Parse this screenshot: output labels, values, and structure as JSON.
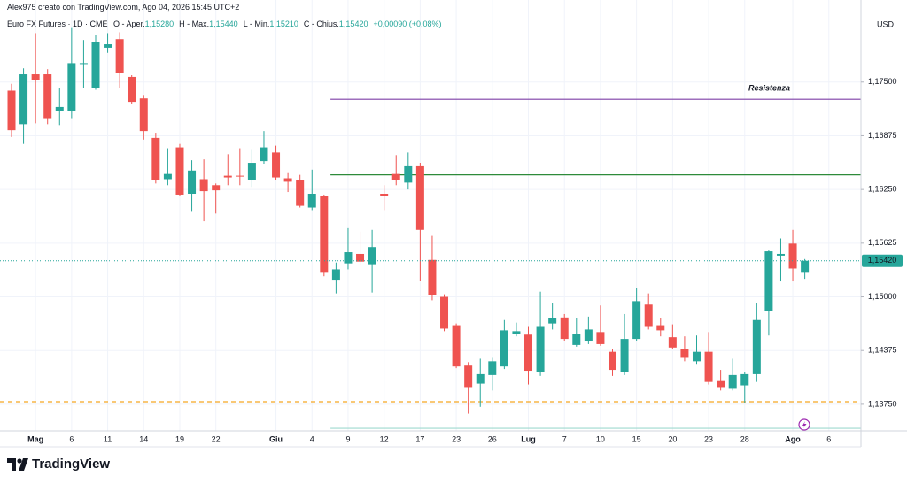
{
  "chart_data": {
    "type": "candlestick",
    "header": "Alex975 creato con TradingView.com, Ago 04, 2026 15:45 UTC+2",
    "title": "Euro FX Futures · 1D · CME",
    "legend": [
      {
        "key": "O - Aper.",
        "value": "1,15280"
      },
      {
        "key": "H - Max.",
        "value": "1,15440"
      },
      {
        "key": "L - Min.",
        "value": "1,15210"
      },
      {
        "key": "C - Chius.",
        "value": "1,15420"
      }
    ],
    "change": "+0,00090 (+0,08%)",
    "currency": "USD",
    "categories": [
      null,
      null,
      "Mag",
      null,
      null,
      "6",
      null,
      null,
      "11",
      null,
      null,
      "14",
      null,
      null,
      "19",
      null,
      null,
      "22",
      null,
      null,
      null,
      null,
      "Giu",
      null,
      null,
      "4",
      null,
      null,
      "9",
      null,
      null,
      "12",
      null,
      null,
      "17",
      null,
      null,
      "23",
      null,
      null,
      "26",
      null,
      null,
      "Lug",
      null,
      null,
      "7",
      null,
      null,
      "10",
      null,
      null,
      "15",
      null,
      null,
      "20",
      null,
      null,
      "23",
      null,
      null,
      "28",
      null,
      null,
      null,
      "Ago",
      null,
      null,
      "6"
    ],
    "open": [
      1.174,
      1.1701,
      1.1759,
      1.1759,
      1.1716,
      1.1716,
      1.1771,
      1.1743,
      1.179,
      1.18,
      1.1756,
      1.1731,
      1.1685,
      1.1637,
      1.1674,
      1.162,
      1.1637,
      1.163,
      1.1641,
      1.1641,
      1.1636,
      1.1658,
      1.1668,
      1.1638,
      1.1636,
      1.1604,
      1.1617,
      1.1519,
      1.1539,
      1.155,
      1.1538,
      1.162,
      1.1643,
      1.1633,
      1.1652,
      1.1543,
      1.15,
      1.1467,
      1.142,
      1.1399,
      1.1409,
      1.1419,
      1.1457,
      1.1456,
      1.1412,
      1.1469,
      1.1476,
      1.1444,
      1.1448,
      1.1459,
      1.1436,
      1.1412,
      1.1451,
      1.1491,
      1.1467,
      1.1453,
      1.1439,
      1.1425,
      1.1436,
      1.1402,
      1.1393,
      1.1397,
      1.141,
      1.1484,
      1.1548,
      1.1562,
      1.1528,
      null,
      null
    ],
    "high": [
      1.1748,
      1.1766,
      1.1807,
      1.1765,
      1.1743,
      1.1813,
      1.1799,
      1.1805,
      1.1807,
      1.1808,
      1.1758,
      1.1735,
      1.1691,
      1.1673,
      1.1678,
      1.1659,
      1.166,
      1.1632,
      1.1666,
      1.1673,
      1.1671,
      1.1693,
      1.1676,
      1.1645,
      1.1642,
      1.1648,
      1.1619,
      1.154,
      1.158,
      1.1576,
      1.1578,
      1.163,
      1.1665,
      1.1668,
      1.1656,
      1.1571,
      1.1503,
      1.1469,
      1.1424,
      1.1428,
      1.1429,
      1.1473,
      1.147,
      1.1465,
      1.1506,
      1.1493,
      1.148,
      1.1475,
      1.1477,
      1.149,
      1.1439,
      1.148,
      1.151,
      1.1504,
      1.1475,
      1.1468,
      1.1454,
      1.1455,
      1.1459,
      1.1415,
      1.1428,
      1.1412,
      1.1493,
      1.1554,
      1.1568,
      1.1578,
      1.1544,
      null,
      null
    ],
    "low": [
      1.1686,
      1.1678,
      1.1702,
      1.1701,
      1.17,
      1.1708,
      1.1743,
      1.1741,
      1.1784,
      1.1743,
      1.1724,
      1.1683,
      1.1632,
      1.163,
      1.1617,
      1.1599,
      1.1588,
      1.1597,
      1.163,
      1.163,
      1.1628,
      1.1655,
      1.1636,
      1.1622,
      1.1604,
      1.1601,
      1.1524,
      1.1504,
      1.1532,
      1.1537,
      1.1505,
      1.1601,
      1.163,
      1.1625,
      1.1518,
      1.1496,
      1.146,
      1.1417,
      1.1364,
      1.1372,
      1.1391,
      1.1416,
      1.1454,
      1.1398,
      1.1408,
      1.1462,
      1.1448,
      1.1442,
      1.1445,
      1.1443,
      1.1408,
      1.1409,
      1.1448,
      1.1462,
      1.1454,
      1.1439,
      1.1425,
      1.1421,
      1.1398,
      1.1391,
      1.1391,
      1.1376,
      1.1401,
      1.1455,
      1.1518,
      1.1518,
      1.1521,
      null,
      null
    ],
    "close": [
      1.1694,
      1.1759,
      1.1752,
      1.1708,
      1.1721,
      1.1772,
      1.1772,
      1.1797,
      1.1794,
      1.1761,
      1.1727,
      1.1693,
      1.1636,
      1.1643,
      1.1619,
      1.1647,
      1.1623,
      1.1624,
      1.1639,
      1.164,
      1.1656,
      1.1674,
      1.1639,
      1.1634,
      1.1606,
      1.162,
      1.1528,
      1.1532,
      1.1552,
      1.1541,
      1.1558,
      1.1617,
      1.1636,
      1.1652,
      1.1578,
      1.1502,
      1.1463,
      1.1419,
      1.1394,
      1.141,
      1.1425,
      1.1461,
      1.146,
      1.1414,
      1.1465,
      1.1475,
      1.1451,
      1.1457,
      1.1462,
      1.1445,
      1.1415,
      1.1451,
      1.1495,
      1.1465,
      1.1461,
      1.1441,
      1.1429,
      1.1436,
      1.1401,
      1.1394,
      1.1409,
      1.141,
      1.1473,
      1.1553,
      1.155,
      1.1533,
      1.1542,
      null,
      null
    ],
    "up_color": "#26a69a",
    "down_color": "#ef5350",
    "ylim": [
      1.1344,
      1.1827
    ],
    "yticks": [
      {
        "value": 1.1375,
        "label": "1,13750"
      },
      {
        "value": 1.14375,
        "label": "1,14375"
      },
      {
        "value": 1.15,
        "label": "1,15000"
      },
      {
        "value": 1.15625,
        "label": "1,15625"
      },
      {
        "value": 1.1625,
        "label": "1,16250"
      },
      {
        "value": 1.16875,
        "label": "1,16875"
      },
      {
        "value": 1.175,
        "label": "1,17500"
      }
    ],
    "grid": true,
    "lines": [
      {
        "value": 1.173,
        "color": "#7e3fa6",
        "label": "Resistenza",
        "from_index": 27
      },
      {
        "value": 1.1642,
        "color": "#2e8b3a",
        "from_index": 27
      },
      {
        "value": 1.1378,
        "color": "#f5a623",
        "dashed": true,
        "from_index": 0
      },
      {
        "value": 1.1347,
        "color": "#9fd9cf",
        "from_index": 27
      }
    ],
    "price_line": {
      "value": 1.1542,
      "label": "1,15420"
    }
  },
  "brand": "TradingView"
}
